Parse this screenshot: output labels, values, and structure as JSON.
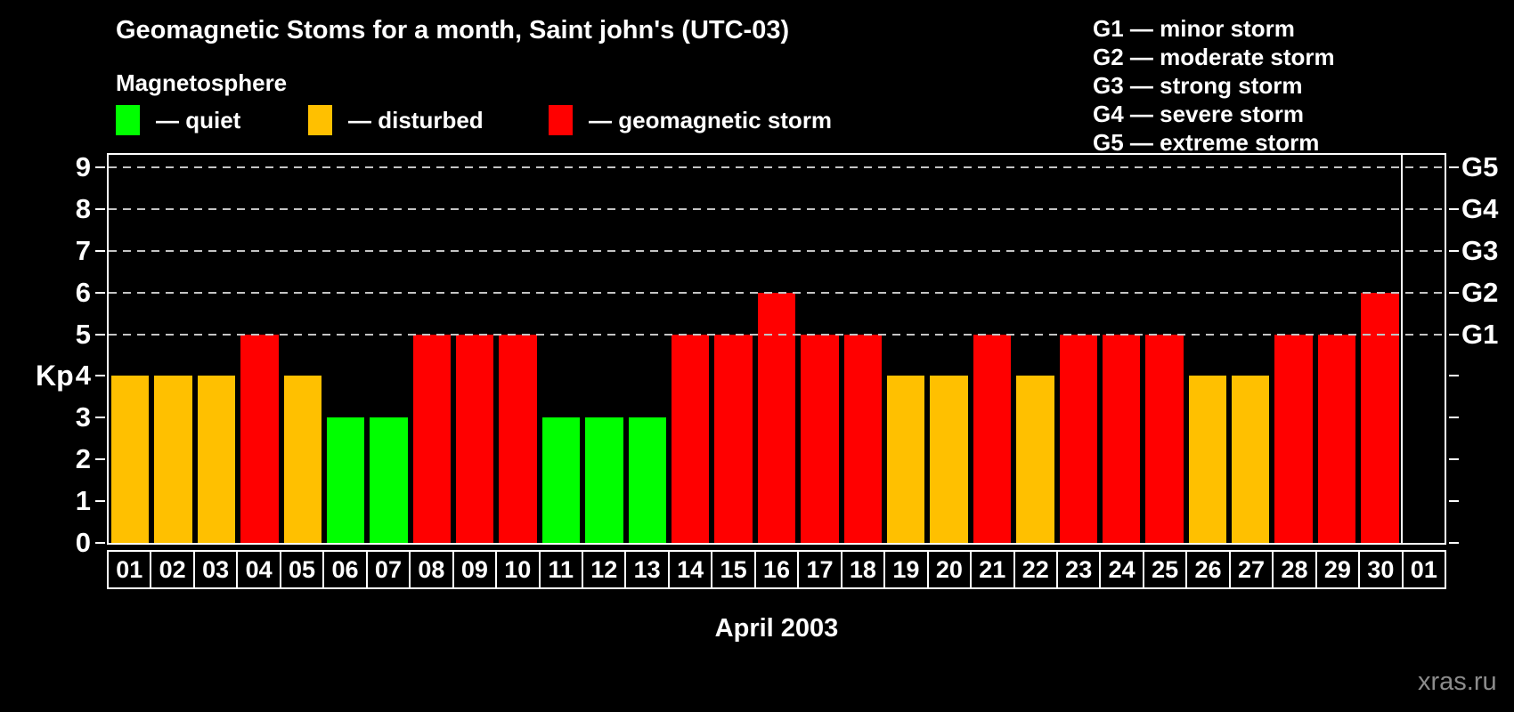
{
  "header": {
    "title": "Geomagnetic Stoms for a month, Saint john's (UTC-03)",
    "subtitle": "Magnetosphere"
  },
  "legend": {
    "items": [
      {
        "key": "quiet",
        "label": "— quiet",
        "color": "#00ff00"
      },
      {
        "key": "disturbed",
        "label": "— disturbed",
        "color": "#ffc000"
      },
      {
        "key": "storm",
        "label": "— geomagnetic storm",
        "color": "#ff0000"
      }
    ]
  },
  "gscale": {
    "lines": [
      "G1 — minor storm",
      "G2 — moderate storm",
      "G3 — strong storm",
      "G4 — severe storm",
      "G5 — extreme storm"
    ]
  },
  "watermark": "xras.ru",
  "chart_data": {
    "type": "bar",
    "title": "Geomagnetic Stoms for a month, Saint john's (UTC-03)",
    "xlabel": "April 2003",
    "ylabel": "Kp",
    "ylim": [
      0,
      9.3
    ],
    "yticks": [
      0,
      1,
      2,
      3,
      4,
      5,
      6,
      7,
      8,
      9
    ],
    "gridlines_at": [
      5,
      6,
      7,
      8,
      9
    ],
    "grid_style": "dashed horizontal gray lines at storm levels only",
    "legend_position": "top-left",
    "right_axis": [
      {
        "kp": 5,
        "label": "G1"
      },
      {
        "kp": 6,
        "label": "G2"
      },
      {
        "kp": 7,
        "label": "G3"
      },
      {
        "kp": 8,
        "label": "G4"
      },
      {
        "kp": 9,
        "label": "G5"
      }
    ],
    "categories": [
      "01",
      "02",
      "03",
      "04",
      "05",
      "06",
      "07",
      "08",
      "09",
      "10",
      "11",
      "12",
      "13",
      "14",
      "15",
      "16",
      "17",
      "18",
      "19",
      "20",
      "21",
      "22",
      "23",
      "24",
      "25",
      "26",
      "27",
      "28",
      "29",
      "30",
      "01"
    ],
    "values": [
      4,
      4,
      4,
      5,
      4,
      3,
      3,
      5,
      5,
      5,
      3,
      3,
      3,
      5,
      5,
      6,
      5,
      5,
      4,
      4,
      5,
      4,
      5,
      5,
      5,
      4,
      4,
      5,
      5,
      6,
      null
    ],
    "statuses": [
      "disturbed",
      "disturbed",
      "disturbed",
      "storm",
      "disturbed",
      "quiet",
      "quiet",
      "storm",
      "storm",
      "storm",
      "quiet",
      "quiet",
      "quiet",
      "storm",
      "storm",
      "storm",
      "storm",
      "storm",
      "disturbed",
      "disturbed",
      "storm",
      "disturbed",
      "storm",
      "storm",
      "storm",
      "disturbed",
      "disturbed",
      "storm",
      "storm",
      "storm",
      null
    ],
    "colors": {
      "quiet": "#00ff00",
      "disturbed": "#ffc000",
      "storm": "#ff0000"
    },
    "frame_color": "#ffffff",
    "background_color": "#000000"
  }
}
